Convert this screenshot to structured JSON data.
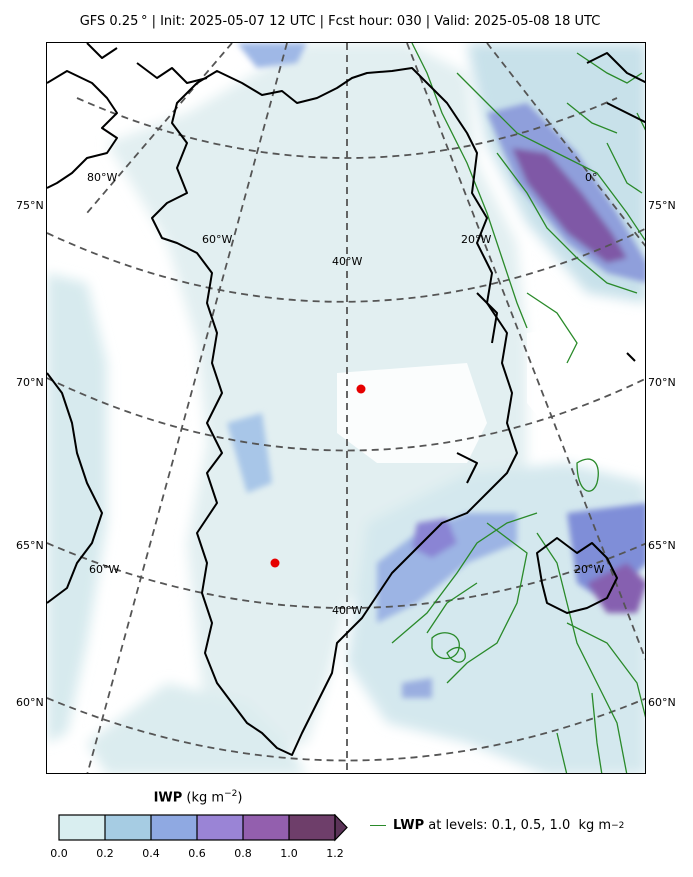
{
  "header": {
    "title": "GFS 0.25 °  |  Init: 2025-05-07 12 UTC  |  Fcst hour: 030  |  Valid: 2025-05-08 18 UTC"
  },
  "map": {
    "region": "Greenland",
    "lat_labels_left": [
      "75°N",
      "70°N",
      "65°N",
      "60°N"
    ],
    "lat_labels_right": [
      "75°N",
      "70°N",
      "65°N",
      "60°N"
    ],
    "lon_labels": [
      "80°W",
      "60°W",
      "40°W",
      "20°W",
      "0°",
      "60°W",
      "40°W",
      "20°W"
    ],
    "markers": [
      {
        "name": "red-dot-north"
      },
      {
        "name": "red-dot-south"
      }
    ],
    "colors": {
      "ice_low": "#dfeef0",
      "ice_mid": "#93b5e0",
      "ice_high": "#7a4e98",
      "lwp_contour": "#2a8a2a",
      "marker": "#e60000",
      "graticule": "#555555"
    }
  },
  "colorbar": {
    "title_bold": "IWP",
    "title_unit": " (kg m",
    "title_exp": "−2",
    "title_close": ")",
    "ticks": [
      "0.0",
      "0.2",
      "0.4",
      "0.6",
      "0.8",
      "1.0",
      "1.2"
    ],
    "range": [
      0.0,
      1.2
    ],
    "extend": "max"
  },
  "legend": {
    "label_bold": "LWP",
    "label_rest": " at levels: 0.1, 0.5, 1.0  kg m",
    "label_exp": "−2"
  }
}
